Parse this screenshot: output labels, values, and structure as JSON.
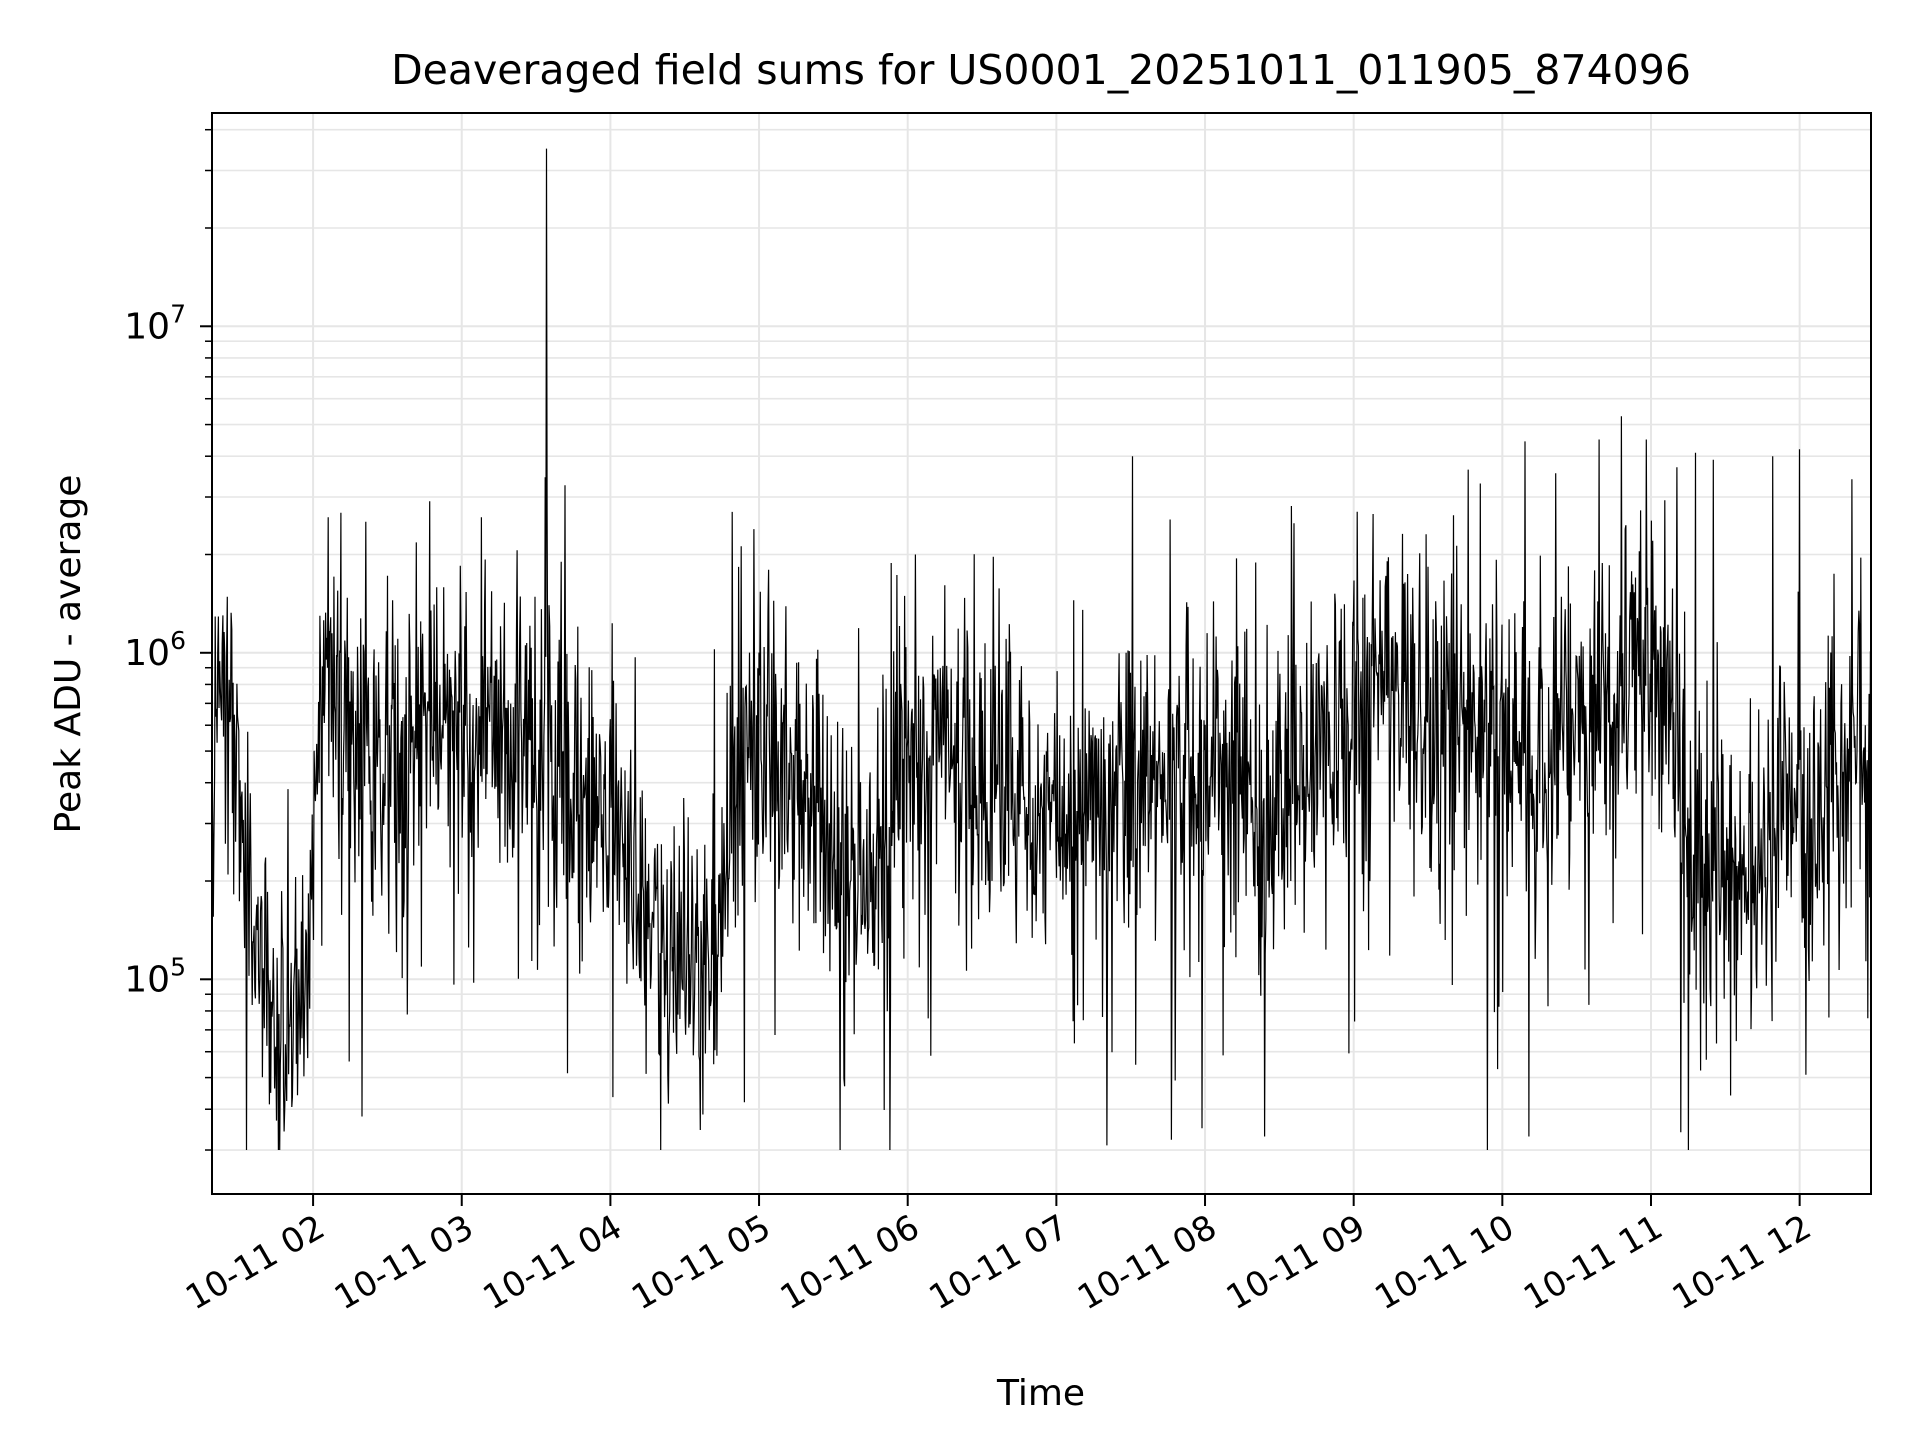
{
  "chart_data": {
    "type": "line",
    "title": "Deaveraged field sums for US0001_20251011_011905_874096",
    "xlabel": "Time",
    "ylabel": "Peak ADU - average",
    "yscale": "log",
    "ylim": [
      22000,
      45000000
    ],
    "xlim_hours": [
      1.32,
      12.48
    ],
    "grid": true,
    "grid_minor": true,
    "legend": "none",
    "line_color": "#000000",
    "grid_color": "#e6e6e6",
    "x_ticks": [
      {
        "hour": 2,
        "label": "10-11 02"
      },
      {
        "hour": 3,
        "label": "10-11 03"
      },
      {
        "hour": 4,
        "label": "10-11 04"
      },
      {
        "hour": 5,
        "label": "10-11 05"
      },
      {
        "hour": 6,
        "label": "10-11 06"
      },
      {
        "hour": 7,
        "label": "10-11 07"
      },
      {
        "hour": 8,
        "label": "10-11 08"
      },
      {
        "hour": 9,
        "label": "10-11 09"
      },
      {
        "hour": 10,
        "label": "10-11 10"
      },
      {
        "hour": 11,
        "label": "10-11 11"
      },
      {
        "hour": 12,
        "label": "10-11 12"
      }
    ],
    "y_ticks": [
      {
        "exp": 5,
        "base": "10",
        "sup": "5"
      },
      {
        "exp": 6,
        "base": "10",
        "sup": "6"
      },
      {
        "exp": 7,
        "base": "10",
        "sup": "7"
      }
    ],
    "series": [
      {
        "name": "Peak ADU - average",
        "base_profile": {
          "x": [
            1.32,
            1.45,
            1.55,
            1.7,
            1.85,
            1.95,
            2.05,
            2.15,
            2.35,
            2.6,
            2.85,
            3.1,
            3.4,
            3.7,
            4.0,
            4.2,
            4.4,
            4.6,
            4.7,
            4.8,
            4.9,
            5.0,
            5.2,
            5.4,
            5.6,
            5.8,
            6.0,
            6.3,
            6.6,
            6.9,
            7.2,
            7.5,
            7.8,
            8.1,
            8.4,
            8.7,
            9.0,
            9.2,
            9.4,
            9.6,
            9.8,
            10.0,
            10.2,
            10.4,
            10.6,
            10.8,
            10.95,
            11.1,
            11.2,
            11.35,
            11.5,
            11.7,
            11.9,
            12.1,
            12.3,
            12.48
          ],
          "y": [
            600000,
            700000,
            200000,
            80000,
            75000,
            80000,
            700000,
            850000,
            450000,
            500000,
            650000,
            550000,
            500000,
            400000,
            300000,
            200000,
            120000,
            120000,
            130000,
            250000,
            500000,
            600000,
            450000,
            300000,
            200000,
            220000,
            450000,
            500000,
            400000,
            300000,
            350000,
            400000,
            350000,
            400000,
            350000,
            420000,
            700000,
            900000,
            800000,
            600000,
            500000,
            600000,
            500000,
            550000,
            650000,
            800000,
            1300000,
            900000,
            400000,
            200000,
            200000,
            250000,
            300000,
            350000,
            450000,
            600000
          ]
        },
        "spikes": [
          {
            "x": 2.1,
            "y": 2600000
          },
          {
            "x": 3.13,
            "y": 2600000
          },
          {
            "x": 3.57,
            "y": 35000000
          },
          {
            "x": 3.67,
            "y": 1900000
          },
          {
            "x": 4.82,
            "y": 2700000
          },
          {
            "x": 6.05,
            "y": 2000000
          },
          {
            "x": 7.51,
            "y": 4000000
          },
          {
            "x": 9.85,
            "y": 3300000
          },
          {
            "x": 10.8,
            "y": 5300000
          },
          {
            "x": 11.3,
            "y": 4100000
          },
          {
            "x": 11.42,
            "y": 3900000
          },
          {
            "x": 11.82,
            "y": 4000000
          },
          {
            "x": 12.0,
            "y": 4200000
          },
          {
            "x": 12.35,
            "y": 3400000
          }
        ],
        "dips": [
          {
            "x": 2.33,
            "y": 38000
          },
          {
            "x": 4.9,
            "y": 42000
          },
          {
            "x": 7.34,
            "y": 31000
          },
          {
            "x": 7.98,
            "y": 35000
          },
          {
            "x": 8.4,
            "y": 33000
          },
          {
            "x": 9.9,
            "y": 30000
          },
          {
            "x": 10.18,
            "y": 33000
          },
          {
            "x": 11.2,
            "y": 34000
          },
          {
            "x": 11.25,
            "y": 30000
          }
        ]
      }
    ]
  }
}
